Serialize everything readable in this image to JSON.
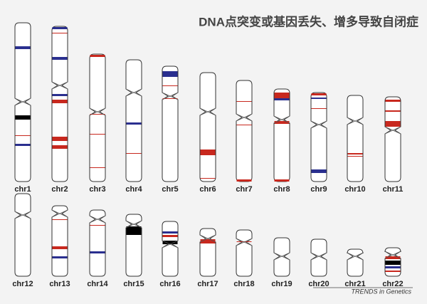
{
  "title": "DNA点突变或基因丢失、增多导致自闭症",
  "chromosomes": [
    "chr1",
    "chr2",
    "chr3",
    "chr4",
    "chr5",
    "chr6",
    "chr7",
    "chr8",
    "chr9",
    "chr10",
    "chr11",
    "chr12",
    "chr13",
    "chr14",
    "chr15",
    "chr16",
    "chr17",
    "chr18",
    "chr19",
    "chr20",
    "chr21",
    "chr22"
  ],
  "source": "TRENDS in Genetics"
}
